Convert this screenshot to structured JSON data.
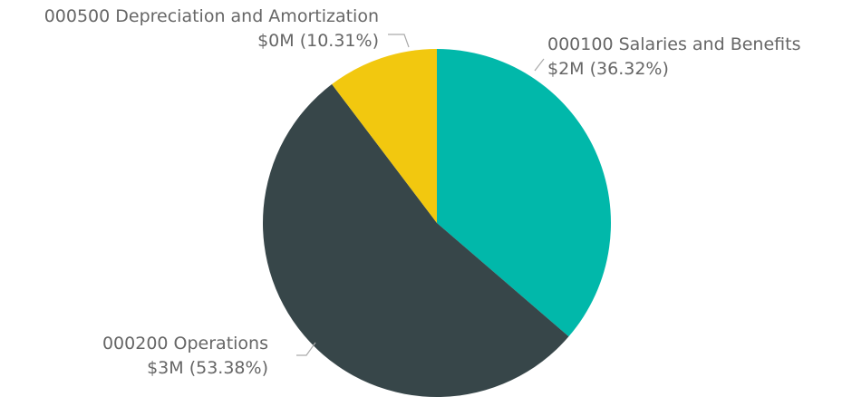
{
  "chart_data": {
    "type": "pie",
    "title": "",
    "slices": [
      {
        "category": "000100 Salaries and Benefits",
        "value_label": "$2M",
        "percent_label": "(36.32%)",
        "percent": 36.32,
        "color": "#01B8AA"
      },
      {
        "category": "000200 Operations",
        "value_label": "$3M",
        "percent_label": "(53.38%)",
        "percent": 53.38,
        "color": "#374649"
      },
      {
        "category": "000500 Depreciation and Amortization",
        "value_label": "$0M",
        "percent_label": "(10.31%)",
        "percent": 10.31,
        "color": "#F2C80F"
      }
    ]
  }
}
